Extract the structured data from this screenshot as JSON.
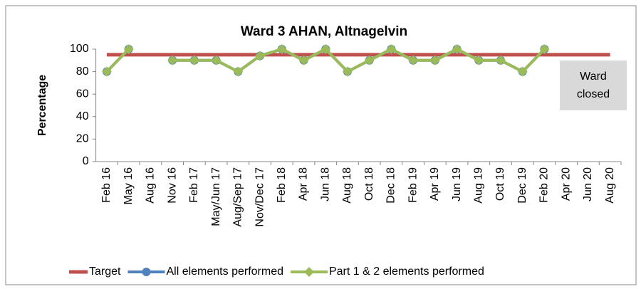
{
  "chart_data": {
    "type": "line",
    "title": "Ward 3 AHAN, Altnagelvin",
    "ylabel": "Percentage",
    "categories": [
      "Feb 16",
      "May 16",
      "Aug 16",
      "Nov 16",
      "Feb 17",
      "May/Jun 17",
      "Aug/Sep 17",
      "Nov/Dec 17",
      "Feb 18",
      "Apr 18",
      "Jun 18",
      "Aug 18",
      "Oct 18",
      "Dec 18",
      "Feb 19",
      "Apr 19",
      "Jun 19",
      "Aug 19",
      "Oct 19",
      "Dec 19",
      "Feb 20",
      "Apr 20",
      "Jun 20",
      "Aug 20"
    ],
    "series": [
      {
        "name": "Target",
        "color": "#c0504d",
        "values": [
          95,
          95,
          95,
          95,
          95,
          95,
          95,
          95,
          95,
          95,
          95,
          95,
          95,
          95,
          95,
          95,
          95,
          95,
          95,
          95,
          95,
          95,
          95,
          95
        ]
      },
      {
        "name": "All elements performed",
        "color": "#4f81bd",
        "values": [
          80,
          100,
          null,
          90,
          90,
          90,
          80,
          94,
          100,
          90,
          100,
          80,
          90,
          100,
          90,
          90,
          100,
          90,
          90,
          80,
          100,
          null,
          null,
          null
        ]
      },
      {
        "name": "Part 1 & 2 elements performed",
        "color": "#9bbb59",
        "values": [
          80,
          100,
          null,
          90,
          90,
          90,
          80,
          94,
          100,
          90,
          100,
          80,
          90,
          100,
          90,
          90,
          100,
          90,
          90,
          80,
          100,
          null,
          null,
          null
        ]
      }
    ],
    "ylim": [
      0,
      100
    ],
    "yticks": [
      0,
      20,
      40,
      60,
      80,
      100
    ],
    "grid": false,
    "legend": "bottom",
    "annotation": [
      "Ward",
      "closed"
    ]
  }
}
